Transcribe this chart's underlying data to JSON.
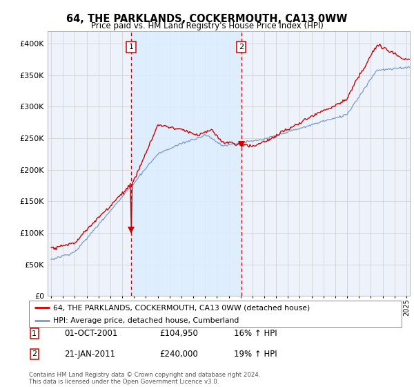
{
  "title": "64, THE PARKLANDS, COCKERMOUTH, CA13 0WW",
  "subtitle": "Price paid vs. HM Land Registry's House Price Index (HPI)",
  "legend_line1": "64, THE PARKLANDS, COCKERMOUTH, CA13 0WW (detached house)",
  "legend_line2": "HPI: Average price, detached house, Cumberland",
  "sale1_label": "1",
  "sale1_date": "01-OCT-2001",
  "sale1_price": "£104,950",
  "sale1_hpi": "16% ↑ HPI",
  "sale2_label": "2",
  "sale2_date": "21-JAN-2011",
  "sale2_price": "£240,000",
  "sale2_hpi": "19% ↑ HPI",
  "footer": "Contains HM Land Registry data © Crown copyright and database right 2024.\nThis data is licensed under the Open Government Licence v3.0.",
  "ylim": [
    0,
    420000
  ],
  "yticks": [
    0,
    50000,
    100000,
    150000,
    200000,
    250000,
    300000,
    350000,
    400000
  ],
  "ytick_labels": [
    "£0",
    "£50K",
    "£100K",
    "£150K",
    "£200K",
    "£250K",
    "£300K",
    "£350K",
    "£400K"
  ],
  "sale1_x": 2001.75,
  "sale1_y": 104950,
  "sale2_x": 2011.05,
  "sale2_y": 240000,
  "price_line_color": "#cc0000",
  "hpi_line_color": "#7799cc",
  "hpi_fill_color": "#ddeeff",
  "vline_color": "#cc0000",
  "background_color": "#ffffff",
  "plot_bg_color": "#eef2fb",
  "grid_color": "#cccccc",
  "xlim_left": 1994.7,
  "xlim_right": 2025.3
}
